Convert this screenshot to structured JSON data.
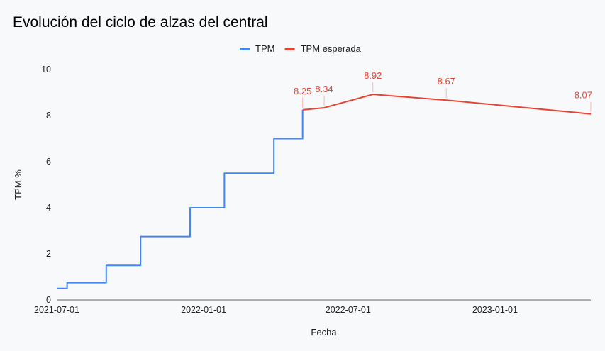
{
  "chart_data": {
    "type": "line",
    "title": "Evolución del ciclo de alzas del central",
    "xlabel": "Fecha",
    "ylabel": "TPM %",
    "ylim": [
      0,
      10
    ],
    "yticks": [
      0,
      2,
      4,
      6,
      8,
      10
    ],
    "xlim": [
      "2021-07-01",
      "2023-05-01"
    ],
    "xticks": [
      "2021-07-01",
      "2022-01-01",
      "2022-07-01",
      "2023-01-01"
    ],
    "grid": false,
    "legend_position": "top-center",
    "series": [
      {
        "name": "TPM",
        "color": "#4285f4",
        "step": true,
        "points": [
          {
            "x": "2021-07-01",
            "y": 0.5
          },
          {
            "x": "2021-07-14",
            "y": 0.75
          },
          {
            "x": "2021-09-01",
            "y": 1.5
          },
          {
            "x": "2021-10-14",
            "y": 2.75
          },
          {
            "x": "2021-12-15",
            "y": 4.0
          },
          {
            "x": "2022-01-27",
            "y": 5.5
          },
          {
            "x": "2022-03-30",
            "y": 7.0
          },
          {
            "x": "2022-05-05",
            "y": 8.25
          }
        ]
      },
      {
        "name": "TPM esperada",
        "color": "#ea4335",
        "step": false,
        "points": [
          {
            "x": "2022-05-05",
            "y": 8.25,
            "label": "8.25"
          },
          {
            "x": "2022-06-01",
            "y": 8.34,
            "label": "8.34"
          },
          {
            "x": "2022-08-01",
            "y": 8.92,
            "label": "8.92"
          },
          {
            "x": "2022-11-01",
            "y": 8.67,
            "label": "8.67"
          },
          {
            "x": "2023-05-01",
            "y": 8.07,
            "label": "8.07"
          }
        ]
      }
    ]
  }
}
